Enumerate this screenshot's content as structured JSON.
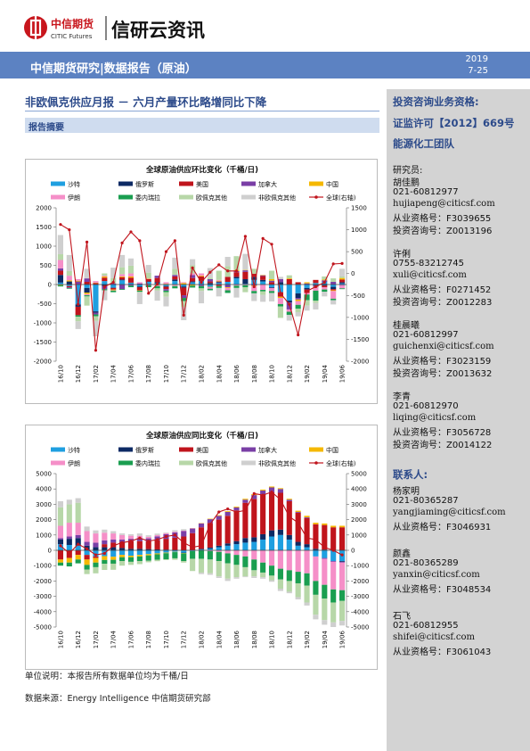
{
  "header": {
    "brand_cn": "中信期货",
    "brand_en": "CITIC Futures",
    "brand_right": "信研云资讯",
    "band_text": "中信期货研究|数据报告（原油）",
    "date_year": "2019",
    "date_day": "7-25",
    "colors": {
      "band": "#5c82c2",
      "logo_red": "#c8161d"
    }
  },
  "report": {
    "title": "非欧佩克供应月报 － 六月产量环比略增同比下降",
    "summary_label": "报告摘要"
  },
  "sidebar": {
    "qualification": "投资咨询业务资格:",
    "license": "证监许可【2012】669号",
    "team": "能源化工团队",
    "researchers_label": "研究员:",
    "researchers": [
      {
        "name": "胡佳鹏",
        "phone": "021-60812977",
        "email": "hujiapeng@citicsf.com",
        "cert": "从业资格号：F3039655",
        "consult": "投资咨询号：Z0013196"
      },
      {
        "name": "许俐",
        "phone": "0755-83212745",
        "email": "xuli@citicsf.com",
        "cert": "从业资格号：F0271452",
        "consult": "投资咨询号：Z0012283"
      },
      {
        "name": "桂晨曦",
        "phone": "021-60812997",
        "email": "guichenxi@citicsf.com",
        "cert": "从业资格号：F3023159",
        "consult": "投资咨询号：Z0013632"
      },
      {
        "name": "李青",
        "phone": "021-60812970",
        "email": "liqing@citicsf.com",
        "cert": "从业资格号：F3056728",
        "consult": "投资咨询号：Z0014122"
      }
    ],
    "contacts_label": "联系人:",
    "contacts": [
      {
        "name": "杨家明",
        "phone": "021-80365287",
        "email": "yangjiaming@citicsf.com",
        "cert": "从业资格号：F3046931"
      },
      {
        "name": "颜鑫",
        "phone": "021-80365289",
        "email": "yanxin@citicsf.com",
        "cert": "从业资格号：F3048534"
      },
      {
        "name": "石飞",
        "phone": "021-60812955",
        "email": "shifei@citicsf.com",
        "cert": "从业资格号：F3061043"
      }
    ]
  },
  "notes": {
    "unit": "单位说明：本报告所有数据单位均为千桶/日",
    "source": "数据来源：Energy Intelligence 中信期货研究部"
  },
  "chart_data": [
    {
      "type": "bar",
      "title": "全球原油供应环比变化（千桶/日)",
      "stacked": true,
      "categories": [
        "16/10",
        "16/11",
        "16/12",
        "17/01",
        "17/02",
        "17/03",
        "17/04",
        "17/05",
        "17/06",
        "17/07",
        "17/08",
        "17/09",
        "17/10",
        "17/11",
        "17/12",
        "18/01",
        "18/02",
        "18/03",
        "18/04",
        "18/05",
        "18/06",
        "18/07",
        "18/08",
        "18/09",
        "18/10",
        "18/11",
        "18/12",
        "19/01",
        "19/02",
        "19/03",
        "19/04",
        "19/05",
        "19/06"
      ],
      "x_tick_labels": [
        "16/10",
        "16/12",
        "17/02",
        "17/04",
        "17/06",
        "17/08",
        "17/10",
        "17/12",
        "18/02",
        "18/04",
        "18/06",
        "18/08",
        "18/10",
        "18/12",
        "19/02",
        "19/04",
        "19/06"
      ],
      "ylim": [
        -2000,
        2000
      ],
      "y2lim": [
        -2000,
        1500
      ],
      "y_ticks": [
        "2000",
        "1500",
        "1000",
        "500",
        "0",
        "-500",
        "-1000",
        "-1500",
        "-2000"
      ],
      "y2_ticks": [
        "1500",
        "1000",
        "500",
        "0",
        "-500",
        "-1000",
        "-1500",
        "-2000"
      ],
      "legend": [
        "沙特",
        "俄罗斯",
        "美国",
        "加拿大",
        "中国",
        "伊朗",
        "委内瑞拉",
        "欧佩克其他",
        "非欧佩克其他",
        "全球(右轴)"
      ],
      "series": [
        {
          "name": "沙特",
          "color": "#1f9fe0",
          "values": [
            50,
            -40,
            -520,
            -90,
            -700,
            90,
            -80,
            110,
            40,
            -50,
            70,
            30,
            -40,
            90,
            -50,
            60,
            90,
            -60,
            40,
            70,
            160,
            20,
            120,
            80,
            -70,
            -200,
            -420,
            -230,
            -90,
            40,
            70,
            -60,
            30
          ]
        },
        {
          "name": "俄罗斯",
          "color": "#0d2a64",
          "values": [
            200,
            80,
            -60,
            -120,
            -40,
            -40,
            -10,
            20,
            10,
            -20,
            10,
            30,
            -20,
            40,
            -30,
            20,
            10,
            40,
            20,
            -10,
            40,
            120,
            80,
            40,
            -20,
            60,
            -50,
            -120,
            -40,
            -20,
            -30,
            -60,
            30
          ]
        },
        {
          "name": "美国",
          "color": "#c0141c",
          "values": [
            110,
            -30,
            -220,
            70,
            40,
            90,
            -40,
            60,
            130,
            -80,
            60,
            110,
            -60,
            80,
            -200,
            90,
            110,
            40,
            -40,
            130,
            120,
            190,
            80,
            100,
            60,
            -120,
            140,
            60,
            -90,
            80,
            -40,
            -30,
            70
          ]
        },
        {
          "name": "加拿大",
          "color": "#7a3fa6",
          "values": [
            60,
            -20,
            80,
            90,
            -40,
            -80,
            30,
            -120,
            -30,
            30,
            -20,
            60,
            -40,
            40,
            -70,
            80,
            -40,
            60,
            20,
            -60,
            30,
            40,
            -30,
            20,
            40,
            80,
            -180,
            -40,
            30,
            -40,
            40,
            70,
            -20
          ]
        },
        {
          "name": "中国",
          "color": "#f5b800",
          "values": [
            -20,
            30,
            20,
            -40,
            10,
            30,
            -20,
            20,
            30,
            -10,
            10,
            -20,
            20,
            -10,
            40,
            -30,
            20,
            -10,
            20,
            -20,
            30,
            10,
            -20,
            10,
            40,
            -30,
            20,
            -40,
            30,
            -10,
            20,
            -20,
            40
          ]
        },
        {
          "name": "伊朗",
          "color": "#f58fc8",
          "values": [
            220,
            120,
            40,
            -30,
            40,
            20,
            -10,
            60,
            80,
            30,
            10,
            -20,
            40,
            -30,
            20,
            40,
            60,
            -40,
            20,
            -60,
            -30,
            -20,
            -120,
            -140,
            -80,
            -160,
            -60,
            -100,
            -40,
            -90,
            -60,
            -200,
            -80
          ]
        },
        {
          "name": "委内瑞拉",
          "color": "#1a9e50",
          "values": [
            -30,
            -20,
            -40,
            -30,
            -50,
            -30,
            -40,
            -20,
            -40,
            -30,
            -50,
            -60,
            -40,
            -60,
            -80,
            -50,
            -60,
            -40,
            -50,
            -70,
            -60,
            -50,
            -60,
            -40,
            -50,
            -60,
            -80,
            -100,
            -150,
            -260,
            -60,
            -40,
            -20
          ]
        },
        {
          "name": "欧佩克其他",
          "color": "#b7d7a8",
          "values": [
            150,
            120,
            -120,
            -240,
            -120,
            60,
            140,
            180,
            200,
            -20,
            150,
            -60,
            -120,
            160,
            -150,
            210,
            -70,
            40,
            240,
            280,
            360,
            -130,
            130,
            -90,
            220,
            -300,
            80,
            -90,
            -140,
            -60,
            80,
            90,
            40
          ]
        },
        {
          "name": "非欧佩克其他",
          "color": "#cfcfcf",
          "values": [
            500,
            420,
            -200,
            250,
            -400,
            -260,
            270,
            320,
            190,
            -300,
            200,
            -260,
            -250,
            290,
            -350,
            160,
            -320,
            250,
            -220,
            240,
            -250,
            420,
            -200,
            -180,
            -220,
            60,
            -150,
            -110,
            -130,
            -170,
            -120,
            -110,
            200
          ]
        }
      ],
      "global_line": {
        "name": "全球(右轴)",
        "color": "#c0141c",
        "values": [
          1120,
          1000,
          -700,
          720,
          -1750,
          -300,
          -200,
          700,
          950,
          750,
          -450,
          -240,
          500,
          750,
          -950,
          130,
          -200,
          30,
          200,
          60,
          60,
          850,
          -300,
          800,
          670,
          -450,
          -700,
          -1400,
          -400,
          -300,
          -200,
          220,
          230
        ]
      }
    },
    {
      "type": "bar",
      "title": "全球原油供应同比变化（千桶/日)",
      "stacked": true,
      "categories": [
        "16/10",
        "16/11",
        "16/12",
        "17/01",
        "17/02",
        "17/03",
        "17/04",
        "17/05",
        "17/06",
        "17/07",
        "17/08",
        "17/09",
        "17/10",
        "17/11",
        "17/12",
        "18/01",
        "18/02",
        "18/03",
        "18/04",
        "18/05",
        "18/06",
        "18/07",
        "18/08",
        "18/09",
        "18/10",
        "18/11",
        "18/12",
        "19/01",
        "19/02",
        "19/03",
        "19/04",
        "19/05",
        "19/06"
      ],
      "x_tick_labels": [
        "16/10",
        "16/12",
        "17/02",
        "17/04",
        "17/06",
        "17/08",
        "17/10",
        "17/12",
        "18/02",
        "18/04",
        "18/06",
        "18/08",
        "18/10",
        "18/12",
        "19/02",
        "19/04",
        "19/06"
      ],
      "ylim": [
        -5000,
        5000
      ],
      "y2lim": [
        -5000,
        5000
      ],
      "y_ticks": [
        "5000",
        "4000",
        "3000",
        "2000",
        "1000",
        "0",
        "-1000",
        "-2000",
        "-3000",
        "-4000",
        "-5000"
      ],
      "y2_ticks": [
        "5000",
        "4000",
        "3000",
        "2000",
        "1000",
        "0",
        "-1000",
        "-2000",
        "-3000",
        "-4000",
        "-5000"
      ],
      "legend": [
        "沙特",
        "俄罗斯",
        "美国",
        "加拿大",
        "中国",
        "伊朗",
        "委内瑞拉",
        "欧佩克其他",
        "非欧佩克其他",
        "全球(右轴)"
      ],
      "series": [
        {
          "name": "沙特",
          "color": "#1f9fe0",
          "values": [
            400,
            350,
            300,
            -300,
            -400,
            -380,
            -420,
            -300,
            -350,
            -300,
            -250,
            -200,
            -150,
            -100,
            -150,
            -50,
            50,
            100,
            200,
            300,
            400,
            500,
            550,
            700,
            900,
            1000,
            700,
            300,
            200,
            -400,
            -500,
            -700,
            -700
          ]
        },
        {
          "name": "俄罗斯",
          "color": "#0d2a64",
          "values": [
            300,
            400,
            500,
            300,
            200,
            200,
            200,
            150,
            100,
            100,
            80,
            60,
            50,
            20,
            -30,
            20,
            50,
            80,
            100,
            150,
            200,
            300,
            300,
            350,
            400,
            350,
            300,
            250,
            200,
            100,
            50,
            0,
            -50
          ]
        },
        {
          "name": "美国",
          "color": "#c0141c",
          "values": [
            -600,
            -500,
            -300,
            -300,
            -100,
            200,
            300,
            400,
            500,
            500,
            500,
            600,
            700,
            800,
            900,
            1100,
            1400,
            1600,
            1700,
            1800,
            2000,
            2300,
            2500,
            2600,
            2500,
            2400,
            2200,
            1900,
            1700,
            1600,
            1600,
            1500,
            1500
          ]
        },
        {
          "name": "加拿大",
          "color": "#7a3fa6",
          "values": [
            100,
            150,
            200,
            250,
            300,
            250,
            200,
            150,
            150,
            200,
            200,
            250,
            300,
            350,
            350,
            300,
            250,
            250,
            250,
            250,
            200,
            200,
            250,
            250,
            300,
            250,
            100,
            50,
            50,
            0,
            -50,
            -50,
            -50
          ]
        },
        {
          "name": "中国",
          "color": "#f5b800",
          "values": [
            -200,
            -300,
            -300,
            -350,
            -300,
            -250,
            -200,
            -150,
            -100,
            -100,
            -80,
            -60,
            -40,
            -20,
            -20,
            10,
            20,
            30,
            40,
            50,
            50,
            60,
            60,
            60,
            60,
            50,
            60,
            80,
            100,
            100,
            100,
            100,
            100
          ]
        },
        {
          "name": "伊朗",
          "color": "#f58fc8",
          "values": [
            800,
            900,
            800,
            700,
            600,
            500,
            400,
            300,
            200,
            150,
            100,
            80,
            60,
            40,
            30,
            20,
            10,
            -50,
            -100,
            -200,
            -300,
            -400,
            -600,
            -800,
            -1000,
            -1200,
            -1300,
            -1400,
            -1500,
            -1600,
            -1700,
            -1800,
            -1800
          ]
        },
        {
          "name": "委内瑞拉",
          "color": "#1a9e50",
          "values": [
            -200,
            -250,
            -250,
            -300,
            -300,
            -250,
            -250,
            -250,
            -300,
            -300,
            -350,
            -350,
            -400,
            -400,
            -500,
            -500,
            -550,
            -550,
            -600,
            -650,
            -650,
            -700,
            -700,
            -650,
            -650,
            -700,
            -700,
            -750,
            -800,
            -900,
            -900,
            -850,
            -700
          ]
        },
        {
          "name": "欧佩克其他",
          "color": "#b7d7a8",
          "values": [
            1200,
            1200,
            1300,
            -300,
            -400,
            -400,
            -400,
            -300,
            -200,
            -200,
            -100,
            -100,
            -50,
            -100,
            -100,
            -800,
            -900,
            -900,
            -1000,
            -1000,
            -800,
            -600,
            -400,
            -300,
            -300,
            -600,
            -700,
            -900,
            -1100,
            -1300,
            -1400,
            -1300,
            -1300
          ]
        },
        {
          "name": "非欧佩克其他",
          "color": "#cfcfcf",
          "values": [
            400,
            300,
            300,
            300,
            200,
            200,
            150,
            100,
            100,
            150,
            100,
            100,
            50,
            100,
            100,
            0,
            -100,
            -100,
            -100,
            -150,
            -100,
            -50,
            -100,
            -100,
            -100,
            -150,
            -100,
            -150,
            -200,
            -300,
            -300,
            -300,
            -300
          ]
        }
      ],
      "global_line": {
        "name": "全球(右轴)",
        "color": "#c0141c",
        "values": [
          300,
          -200,
          400,
          100,
          -300,
          -200,
          300,
          500,
          600,
          800,
          600,
          700,
          900,
          1000,
          500,
          200,
          300,
          1700,
          2500,
          2700,
          2500,
          2600,
          3700,
          3600,
          3800,
          3300,
          2200,
          1800,
          800,
          700,
          200,
          0,
          -300
        ]
      }
    }
  ]
}
